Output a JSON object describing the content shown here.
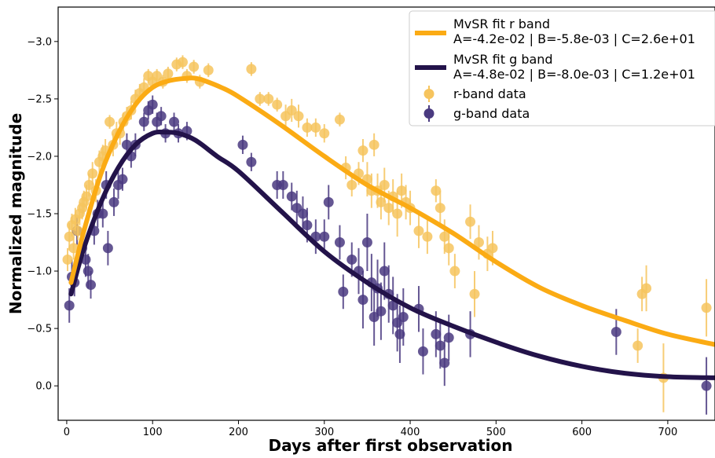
{
  "chart_data": {
    "type": "scatter",
    "xlabel": "Days after first observation",
    "ylabel": "Normalized magnitude",
    "xlim": [
      -10,
      755
    ],
    "ylim": [
      0.3,
      -3.3
    ],
    "y_inverted": true,
    "x_ticks": [
      0,
      100,
      200,
      300,
      400,
      500,
      600,
      700
    ],
    "y_ticks": [
      -3.0,
      -2.5,
      -2.0,
      -1.5,
      -1.0,
      -0.5,
      0.0
    ],
    "y_tick_labels": [
      "−3.0",
      "−2.5",
      "−2.0",
      "−1.5",
      "−1.0",
      "−0.5",
      "0.0"
    ],
    "legend_position": "top-right",
    "colors": {
      "r_band": "#fbab14",
      "g_band": "#23134a",
      "r_points": "#f6c45e",
      "g_points": "#4a3a80"
    },
    "series": [
      {
        "name": "MvSR fit r band",
        "label_line2": "A=-4.2e-02 | B=-5.8e-03 | C=2.6e+01",
        "kind": "fit_line",
        "x": [
          5,
          20,
          40,
          60,
          80,
          100,
          120,
          140,
          150,
          160,
          180,
          200,
          250,
          300,
          350,
          400,
          450,
          500,
          550,
          600,
          650,
          700,
          755
        ],
        "y": [
          -0.9,
          -1.35,
          -1.85,
          -2.2,
          -2.45,
          -2.6,
          -2.66,
          -2.68,
          -2.68,
          -2.66,
          -2.6,
          -2.52,
          -2.27,
          -2.0,
          -1.75,
          -1.55,
          -1.33,
          -1.08,
          -0.86,
          -0.7,
          -0.57,
          -0.45,
          -0.36
        ]
      },
      {
        "name": "MvSR fit g band",
        "label_line2": "A=-4.8e-02 | B=-8.0e-03 | C=1.2e+01",
        "kind": "fit_line",
        "x": [
          5,
          20,
          40,
          60,
          80,
          100,
          115,
          130,
          150,
          175,
          200,
          250,
          300,
          350,
          400,
          450,
          500,
          550,
          600,
          650,
          700,
          755
        ],
        "y": [
          -0.8,
          -1.2,
          -1.6,
          -1.9,
          -2.1,
          -2.2,
          -2.21,
          -2.2,
          -2.14,
          -2.0,
          -1.87,
          -1.52,
          -1.17,
          -0.9,
          -0.68,
          -0.52,
          -0.38,
          -0.26,
          -0.17,
          -0.11,
          -0.08,
          -0.07
        ]
      },
      {
        "name": "r-band data",
        "kind": "data_points",
        "points": [
          [
            1,
            -1.1,
            0.1
          ],
          [
            3,
            -1.3,
            0.12
          ],
          [
            6,
            -1.4,
            0.1
          ],
          [
            8,
            -1.2,
            0.1
          ],
          [
            10,
            -1.45,
            0.1
          ],
          [
            13,
            -1.35,
            0.08
          ],
          [
            15,
            -1.5,
            0.1
          ],
          [
            18,
            -1.55,
            0.1
          ],
          [
            20,
            -1.6,
            0.1
          ],
          [
            23,
            -1.65,
            0.1
          ],
          [
            26,
            -1.75,
            0.1
          ],
          [
            30,
            -1.85,
            0.1
          ],
          [
            34,
            -1.7,
            0.1
          ],
          [
            38,
            -1.95,
            0.1
          ],
          [
            42,
            -2.0,
            0.1
          ],
          [
            45,
            -2.05,
            0.1
          ],
          [
            50,
            -2.3,
            0.06
          ],
          [
            54,
            -2.1,
            0.1
          ],
          [
            58,
            -2.2,
            0.1
          ],
          [
            62,
            -2.2,
            0.1
          ],
          [
            66,
            -2.3,
            0.08
          ],
          [
            70,
            -2.35,
            0.08
          ],
          [
            75,
            -2.4,
            0.08
          ],
          [
            80,
            -2.5,
            0.08
          ],
          [
            85,
            -2.55,
            0.08
          ],
          [
            90,
            -2.6,
            0.08
          ],
          [
            95,
            -2.7,
            0.06
          ],
          [
            100,
            -2.65,
            0.06
          ],
          [
            105,
            -2.7,
            0.06
          ],
          [
            112,
            -2.65,
            0.06
          ],
          [
            118,
            -2.72,
            0.06
          ],
          [
            128,
            -2.8,
            0.06
          ],
          [
            135,
            -2.82,
            0.06
          ],
          [
            140,
            -2.7,
            0.06
          ],
          [
            148,
            -2.78,
            0.06
          ],
          [
            155,
            -2.65,
            0.06
          ],
          [
            165,
            -2.75,
            0.06
          ],
          [
            215,
            -2.76,
            0.06
          ],
          [
            225,
            -2.5,
            0.06
          ],
          [
            235,
            -2.5,
            0.06
          ],
          [
            245,
            -2.45,
            0.06
          ],
          [
            255,
            -2.35,
            0.1
          ],
          [
            262,
            -2.4,
            0.1
          ],
          [
            270,
            -2.35,
            0.1
          ],
          [
            280,
            -2.25,
            0.08
          ],
          [
            290,
            -2.25,
            0.08
          ],
          [
            300,
            -2.2,
            0.08
          ],
          [
            318,
            -2.32,
            0.06
          ],
          [
            325,
            -1.9,
            0.1
          ],
          [
            332,
            -1.75,
            0.1
          ],
          [
            340,
            -1.85,
            0.1
          ],
          [
            345,
            -2.05,
            0.1
          ],
          [
            350,
            -1.8,
            0.15
          ],
          [
            355,
            -1.7,
            0.15
          ],
          [
            358,
            -2.1,
            0.1
          ],
          [
            362,
            -1.7,
            0.15
          ],
          [
            366,
            -1.6,
            0.15
          ],
          [
            370,
            -1.75,
            0.15
          ],
          [
            375,
            -1.55,
            0.15
          ],
          [
            380,
            -1.65,
            0.15
          ],
          [
            385,
            -1.5,
            0.2
          ],
          [
            390,
            -1.7,
            0.15
          ],
          [
            395,
            -1.6,
            0.15
          ],
          [
            400,
            -1.55,
            0.15
          ],
          [
            410,
            -1.35,
            0.15
          ],
          [
            420,
            -1.3,
            0.15
          ],
          [
            430,
            -1.7,
            0.1
          ],
          [
            435,
            -1.55,
            0.15
          ],
          [
            440,
            -1.3,
            0.15
          ],
          [
            445,
            -1.2,
            0.15
          ],
          [
            452,
            -1.0,
            0.15
          ],
          [
            470,
            -1.43,
            0.15
          ],
          [
            475,
            -0.8,
            0.2
          ],
          [
            480,
            -1.25,
            0.15
          ],
          [
            490,
            -1.15,
            0.15
          ],
          [
            496,
            -1.2,
            0.15
          ],
          [
            665,
            -0.35,
            0.15
          ],
          [
            670,
            -0.8,
            0.15
          ],
          [
            675,
            -0.85,
            0.2
          ],
          [
            695,
            -0.07,
            0.3
          ],
          [
            745,
            -0.68,
            0.25
          ]
        ]
      },
      {
        "name": "g-band data",
        "kind": "data_points",
        "points": [
          [
            3,
            -0.7,
            0.15
          ],
          [
            6,
            -0.95,
            0.15
          ],
          [
            9,
            -0.9,
            0.12
          ],
          [
            12,
            -1.35,
            0.12
          ],
          [
            18,
            -1.2,
            0.12
          ],
          [
            22,
            -1.1,
            0.15
          ],
          [
            25,
            -1.0,
            0.15
          ],
          [
            28,
            -0.88,
            0.12
          ],
          [
            32,
            -1.35,
            0.12
          ],
          [
            36,
            -1.5,
            0.12
          ],
          [
            42,
            -1.5,
            0.12
          ],
          [
            46,
            -1.75,
            0.12
          ],
          [
            48,
            -1.2,
            0.15
          ],
          [
            55,
            -1.6,
            0.12
          ],
          [
            60,
            -1.75,
            0.12
          ],
          [
            65,
            -1.8,
            0.1
          ],
          [
            70,
            -2.1,
            0.1
          ],
          [
            75,
            -2.0,
            0.1
          ],
          [
            80,
            -2.1,
            0.1
          ],
          [
            90,
            -2.3,
            0.08
          ],
          [
            95,
            -2.4,
            0.08
          ],
          [
            100,
            -2.45,
            0.08
          ],
          [
            105,
            -2.3,
            0.08
          ],
          [
            110,
            -2.35,
            0.08
          ],
          [
            115,
            -2.2,
            0.08
          ],
          [
            125,
            -2.3,
            0.08
          ],
          [
            130,
            -2.2,
            0.08
          ],
          [
            140,
            -2.22,
            0.08
          ],
          [
            205,
            -2.1,
            0.08
          ],
          [
            215,
            -1.95,
            0.08
          ],
          [
            245,
            -1.75,
            0.12
          ],
          [
            252,
            -1.75,
            0.12
          ],
          [
            262,
            -1.65,
            0.12
          ],
          [
            268,
            -1.55,
            0.15
          ],
          [
            275,
            -1.5,
            0.15
          ],
          [
            280,
            -1.4,
            0.15
          ],
          [
            290,
            -1.3,
            0.15
          ],
          [
            300,
            -1.3,
            0.15
          ],
          [
            305,
            -1.6,
            0.15
          ],
          [
            318,
            -1.25,
            0.15
          ],
          [
            322,
            -0.82,
            0.15
          ],
          [
            332,
            -1.1,
            0.15
          ],
          [
            340,
            -1.0,
            0.2
          ],
          [
            345,
            -0.75,
            0.25
          ],
          [
            350,
            -1.25,
            0.25
          ],
          [
            355,
            -0.9,
            0.25
          ],
          [
            358,
            -0.6,
            0.25
          ],
          [
            362,
            -0.85,
            0.25
          ],
          [
            366,
            -0.65,
            0.25
          ],
          [
            370,
            -1.0,
            0.25
          ],
          [
            375,
            -0.8,
            0.25
          ],
          [
            380,
            -0.7,
            0.25
          ],
          [
            385,
            -0.55,
            0.25
          ],
          [
            388,
            -0.45,
            0.25
          ],
          [
            392,
            -0.6,
            0.25
          ],
          [
            410,
            -0.67,
            0.2
          ],
          [
            415,
            -0.3,
            0.2
          ],
          [
            430,
            -0.45,
            0.2
          ],
          [
            435,
            -0.35,
            0.2
          ],
          [
            440,
            -0.2,
            0.2
          ],
          [
            445,
            -0.42,
            0.2
          ],
          [
            470,
            -0.45,
            0.2
          ],
          [
            640,
            -0.47,
            0.2
          ],
          [
            745,
            0.0,
            0.25
          ]
        ]
      }
    ]
  }
}
